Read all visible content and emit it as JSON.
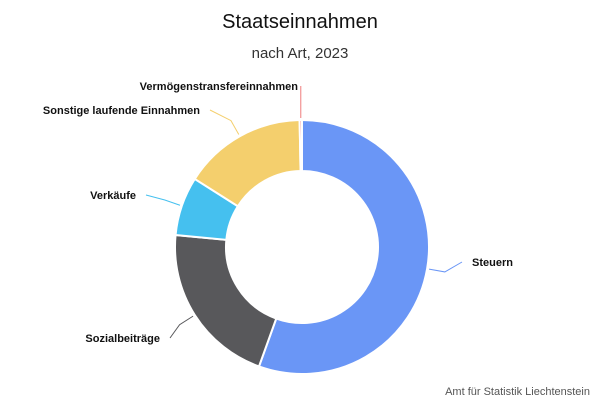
{
  "chart_data": {
    "type": "pie",
    "variant": "donut",
    "title": "Staatseinnahmen",
    "subtitle": "nach Art, 2023",
    "credit": "Amt für Statistik Liechtenstein",
    "slices": [
      {
        "name": "Steuern",
        "value": 55.5,
        "color": "#6a96f6"
      },
      {
        "name": "Sozialbeiträge",
        "value": 21.0,
        "color": "#58585b"
      },
      {
        "name": "Verkäufe",
        "value": 7.5,
        "color": "#45c0ef"
      },
      {
        "name": "Sonstige laufende Einnahmen",
        "value": 15.7,
        "color": "#f4cf6d"
      },
      {
        "name": "Vermögenstransfereinnahmen",
        "value": 0.3,
        "color": "#f07c7c"
      }
    ]
  }
}
